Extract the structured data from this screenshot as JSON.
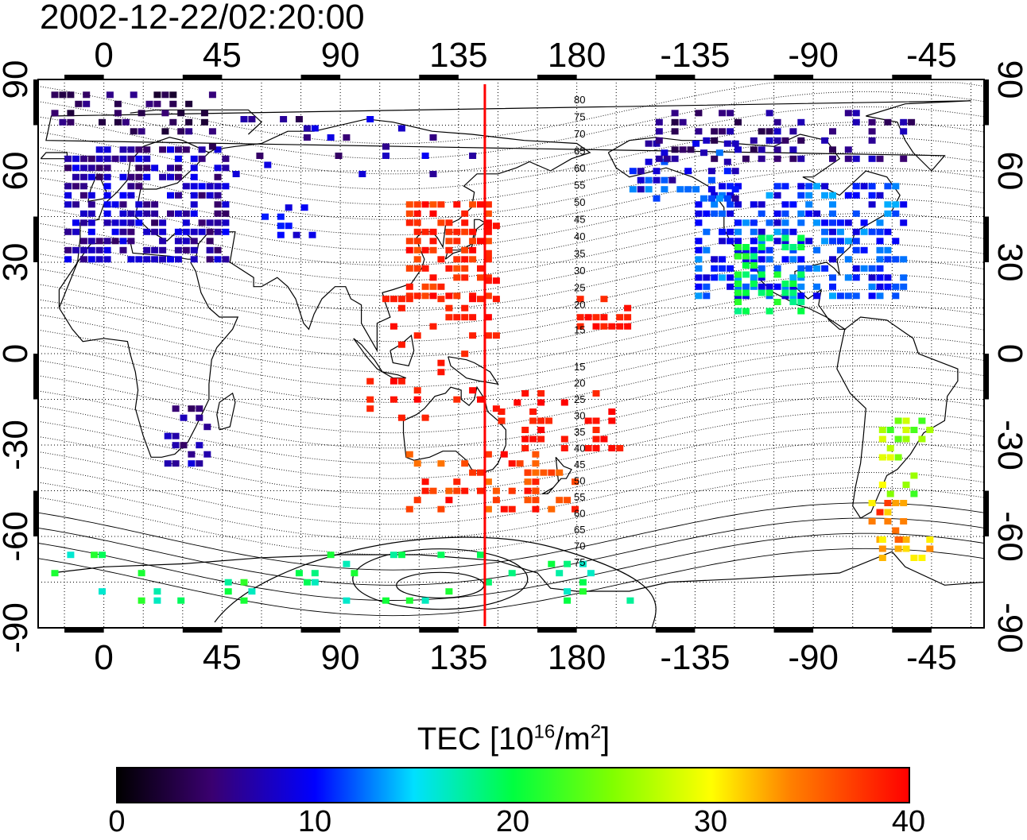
{
  "timestamp": "2002-12-22/02:20:00",
  "lon_ticks": [
    "0",
    "45",
    "90",
    "135",
    "180",
    "-135",
    "-90",
    "-45"
  ],
  "lat_ticks": [
    "90",
    "60",
    "30",
    "0",
    "-30",
    "-60",
    "-90"
  ],
  "colorbar": {
    "title_main": "TEC  [10",
    "title_exp1": "16",
    "title_mid": "/m",
    "title_exp2": "2",
    "title_end": "]",
    "ticks": [
      "0",
      "10",
      "20",
      "30",
      "40"
    ],
    "range": [
      0,
      40
    ],
    "colors": [
      "#000000",
      "#3a0070",
      "#0000ff",
      "#00ffff",
      "#00ff00",
      "#ffff00",
      "#ff8000",
      "#ff0000"
    ]
  },
  "map": {
    "lon_range": [
      -25,
      335
    ],
    "lat_range": [
      -90,
      90
    ],
    "marker_line_lon": 145,
    "marker_line_color": "#ff0000",
    "contour_labels_north": [
      "80",
      "75",
      "70",
      "65",
      "60",
      "55",
      "50",
      "45",
      "40",
      "35",
      "30",
      "25",
      "20",
      "15"
    ],
    "contour_labels_south": [
      "15",
      "20",
      "25",
      "30",
      "35",
      "40",
      "45",
      "50",
      "55",
      "60",
      "65",
      "70",
      "75"
    ]
  }
}
